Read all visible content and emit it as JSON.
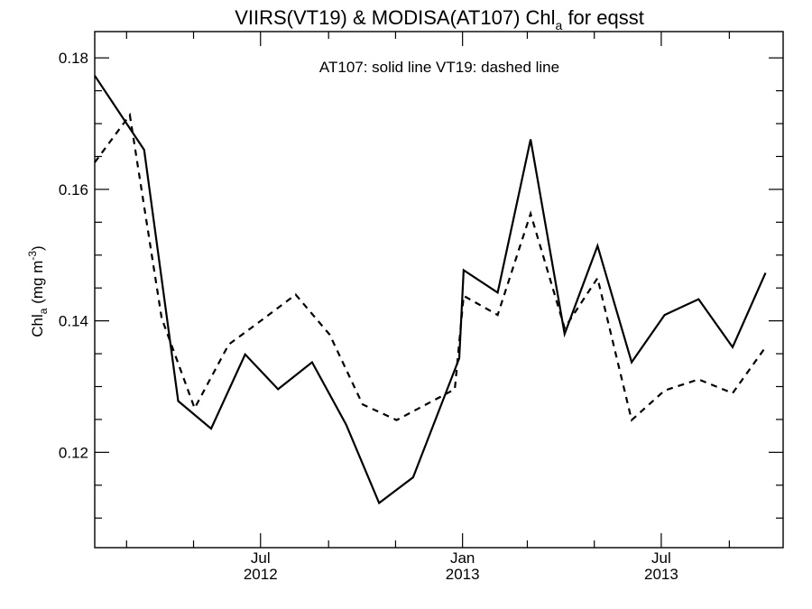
{
  "chart_data": {
    "type": "line",
    "title_parts": {
      "lead": "VIIRS(VT19) & MODISA(AT107)  Chl",
      "sub": "a",
      "tail": " for eqsst"
    },
    "annotation": "AT107: solid line   VT19: dashed line",
    "ylabel_parts": {
      "lead": "Chl",
      "sub": "a",
      "unit": " (mg m",
      "sup": "-3",
      "close": ")"
    },
    "ylim": [
      0.1055,
      0.184
    ],
    "yticks": [
      "0.12",
      "0.14",
      "0.16",
      "0.18"
    ],
    "xlim": [
      "2012-02-01",
      "2013-10-20"
    ],
    "xtick_labels": [
      {
        "month": "Jul",
        "year": "2012",
        "date": "2012-07-01"
      },
      {
        "month": "Jan",
        "year": "2013",
        "date": "2013-01-01"
      },
      {
        "month": "Jul",
        "year": "2013",
        "date": "2013-07-01"
      }
    ],
    "series": [
      {
        "name": "AT107",
        "style": "solid",
        "points": [
          [
            "2012-02-01",
            0.1773
          ],
          [
            "2012-03-17",
            0.166
          ],
          [
            "2012-04-17",
            0.1278
          ],
          [
            "2012-05-17",
            0.1236
          ],
          [
            "2012-06-17",
            0.1349
          ],
          [
            "2012-07-17",
            0.1296
          ],
          [
            "2012-08-17",
            0.1337
          ],
          [
            "2012-09-17",
            0.1242
          ],
          [
            "2012-10-17",
            0.1123
          ],
          [
            "2012-11-17",
            0.1162
          ],
          [
            "2012-12-29",
            0.1343
          ],
          [
            "2013-01-02",
            0.1477
          ],
          [
            "2013-02-02",
            0.1443
          ],
          [
            "2013-03-04",
            0.1676
          ],
          [
            "2013-04-04",
            0.138
          ],
          [
            "2013-05-04",
            0.1514
          ],
          [
            "2013-06-04",
            0.1337
          ],
          [
            "2013-07-04",
            0.1409
          ],
          [
            "2013-08-04",
            0.1433
          ],
          [
            "2013-09-04",
            0.136
          ],
          [
            "2013-10-04",
            0.1473
          ]
        ]
      },
      {
        "name": "VT19",
        "style": "dashed",
        "points": [
          [
            "2012-02-01",
            0.1641
          ],
          [
            "2012-03-04",
            0.1713
          ],
          [
            "2012-04-02",
            0.1404
          ],
          [
            "2012-05-02",
            0.1267
          ],
          [
            "2012-06-02",
            0.1364
          ],
          [
            "2012-07-02",
            0.1401
          ],
          [
            "2012-08-02",
            0.144
          ],
          [
            "2012-09-02",
            0.1379
          ],
          [
            "2012-10-02",
            0.1273
          ],
          [
            "2012-11-02",
            0.1249
          ],
          [
            "2012-12-25",
            0.1296
          ],
          [
            "2013-01-02",
            0.1438
          ],
          [
            "2013-02-02",
            0.1409
          ],
          [
            "2013-03-04",
            0.1563
          ],
          [
            "2013-04-04",
            0.1389
          ],
          [
            "2013-05-04",
            0.1465
          ],
          [
            "2013-06-04",
            0.1249
          ],
          [
            "2013-07-04",
            0.1294
          ],
          [
            "2013-08-04",
            0.1311
          ],
          [
            "2013-09-04",
            0.129
          ],
          [
            "2013-10-04",
            0.136
          ]
        ]
      }
    ],
    "grid": false,
    "legend": "none"
  }
}
